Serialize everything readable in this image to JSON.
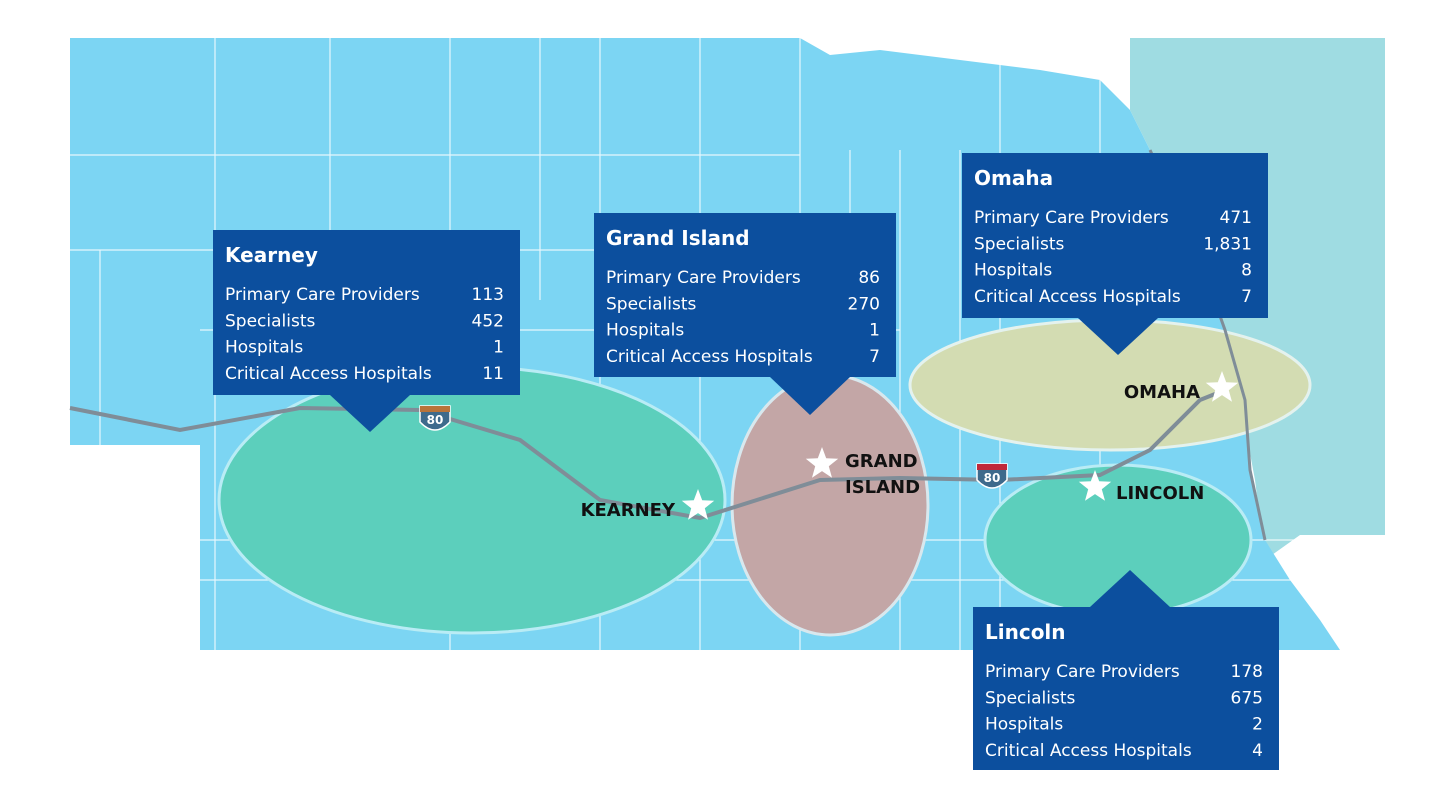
{
  "callouts": [
    {
      "title": "Kearney",
      "rows": [
        {
          "label": "Primary Care Providers",
          "value": "113"
        },
        {
          "label": "Specialists",
          "value": "452"
        },
        {
          "label": "Hospitals",
          "value": "1"
        },
        {
          "label": "Critical Access Hospitals",
          "value": "11"
        }
      ]
    },
    {
      "title": "Grand Island",
      "rows": [
        {
          "label": "Primary Care Providers",
          "value": "86"
        },
        {
          "label": "Specialists",
          "value": "270"
        },
        {
          "label": "Hospitals",
          "value": "1"
        },
        {
          "label": "Critical Access Hospitals",
          "value": "7"
        }
      ]
    },
    {
      "title": "Omaha",
      "rows": [
        {
          "label": "Primary Care Providers",
          "value": "471"
        },
        {
          "label": "Specialists",
          "value": "1,831"
        },
        {
          "label": "Hospitals",
          "value": "8"
        },
        {
          "label": "Critical Access Hospitals",
          "value": "7"
        }
      ]
    },
    {
      "title": "Lincoln",
      "rows": [
        {
          "label": "Primary Care Providers",
          "value": "178"
        },
        {
          "label": "Specialists",
          "value": "675"
        },
        {
          "label": "Hospitals",
          "value": "2"
        },
        {
          "label": "Critical Access Hospitals",
          "value": "4"
        }
      ]
    }
  ],
  "cities": [
    [
      "KEARNEY"
    ],
    [
      "GRAND",
      "ISLAND"
    ],
    [
      "OMAHA"
    ],
    [
      "LINCOLN"
    ]
  ],
  "shields": [
    "80",
    "80"
  ]
}
